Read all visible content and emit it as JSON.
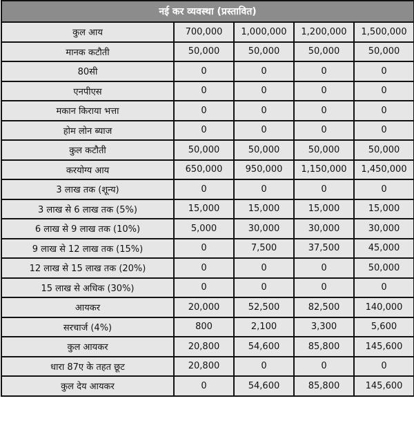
{
  "title": "नई कर व्यवस्था (प्रस्तावित)",
  "colors": {
    "header_bg": "#8c8c8c",
    "cell_bg": "#e6e6e6",
    "border": "#111111"
  },
  "rows": [
    {
      "label": "कुल आय",
      "values": [
        "700,000",
        "1,000,000",
        "1,200,000",
        "1,500,000"
      ]
    },
    {
      "label": "मानक कटौती",
      "values": [
        "50,000",
        "50,000",
        "50,000",
        "50,000"
      ]
    },
    {
      "label": "80सी",
      "values": [
        "0",
        "0",
        "0",
        "0"
      ]
    },
    {
      "label": "एनपीएस",
      "values": [
        "0",
        "0",
        "0",
        "0"
      ]
    },
    {
      "label": "मकान किराया भत्ता",
      "values": [
        "0",
        "0",
        "0",
        "0"
      ]
    },
    {
      "label": "होम लोन ब्याज",
      "values": [
        "0",
        "0",
        "0",
        "0"
      ]
    },
    {
      "label": "कुल कटौती",
      "values": [
        "50,000",
        "50,000",
        "50,000",
        "50,000"
      ]
    },
    {
      "label": "करयोग्य आय",
      "values": [
        "650,000",
        "950,000",
        "1,150,000",
        "1,450,000"
      ]
    },
    {
      "label": "3 लाख तक (शून्य)",
      "values": [
        "0",
        "0",
        "0",
        "0"
      ]
    },
    {
      "label": "3 लाख से 6 लाख तक (5%)",
      "values": [
        "15,000",
        "15,000",
        "15,000",
        "15,000"
      ]
    },
    {
      "label": "6 लाख से 9 लाख तक (10%)",
      "values": [
        "5,000",
        "30,000",
        "30,000",
        "30,000"
      ]
    },
    {
      "label": "9 लाख से 12 लाख तक (15%)",
      "values": [
        "0",
        "7,500",
        "37,500",
        "45,000"
      ]
    },
    {
      "label": "12 लाख से 15 लाख तक (20%)",
      "values": [
        "0",
        "0",
        "0",
        "50,000"
      ]
    },
    {
      "label": "15 लाख से अधिक (30%)",
      "values": [
        "0",
        "0",
        "0",
        "0"
      ]
    },
    {
      "label": "आयकर",
      "values": [
        "20,000",
        "52,500",
        "82,500",
        "140,000"
      ]
    },
    {
      "label": "सरचार्ज (4%)",
      "values": [
        "800",
        "2,100",
        "3,300",
        "5,600"
      ]
    },
    {
      "label": "कुल आयकर",
      "values": [
        "20,800",
        "54,600",
        "85,800",
        "145,600"
      ]
    },
    {
      "label": "धारा 87ए के तहत छूट",
      "values": [
        "20,800",
        "0",
        "0",
        "0"
      ]
    },
    {
      "label": "कुल देय आयकर",
      "values": [
        "0",
        "54,600",
        "85,800",
        "145,600"
      ]
    }
  ]
}
